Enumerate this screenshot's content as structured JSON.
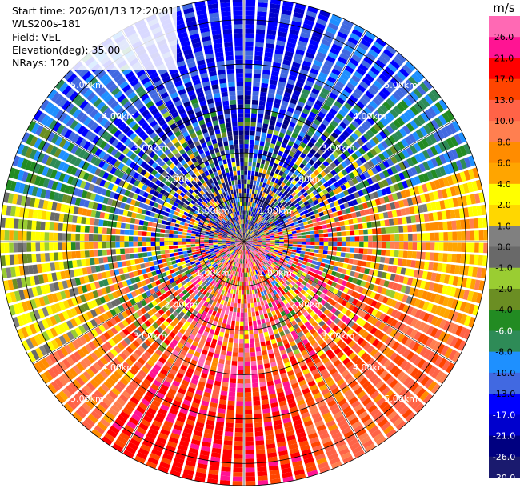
{
  "info": {
    "start_time": "Start time: 2026/01/13 12:20:01",
    "instrument": "WLS200s-181",
    "field": "Field: VEL",
    "elevation": "Elevation(deg): 35.00",
    "nrays": "NRays: 120"
  },
  "chart_data": {
    "type": "heatmap",
    "projection": "polar-ppi",
    "field": "VEL",
    "units": "m/s",
    "elevation_deg": 35.0,
    "n_rays": 120,
    "max_range_km": 5.5,
    "range_rings_km": [
      1,
      2,
      3,
      4,
      5
    ],
    "range_labels": [
      "1.00km",
      "2.00km",
      "3.00km",
      "4.00km",
      "5.00km"
    ],
    "colorbar": {
      "label": "m/s",
      "vmin": -30,
      "vmax": 30,
      "bounds": [
        -30,
        -26,
        -21,
        -17,
        -13,
        -10,
        -8,
        -6,
        -4,
        -2,
        -1,
        0,
        1,
        2,
        4,
        6,
        8,
        10,
        13,
        17,
        21,
        26,
        30
      ],
      "tick_labels": [
        "26.0",
        "21.0",
        "17.0",
        "13.0",
        "10.0",
        "8.0",
        "6.0",
        "4.0",
        "2.0",
        "1.0",
        "0.0",
        "-1.0",
        "-2.0",
        "-4.0",
        "-6.0",
        "-8.0",
        "-10.0",
        "-13.0",
        "-17.0",
        "-21.0",
        "-26.0",
        "-30.0"
      ],
      "colors": [
        "#1a1a6e",
        "#000080",
        "#0000cd",
        "#0000ff",
        "#4169e1",
        "#1e90ff",
        "#2e8b57",
        "#228b22",
        "#6b8e23",
        "#9acd32",
        "#696969",
        "#808080",
        "#ffd700",
        "#ffff00",
        "#ffa500",
        "#ff8c00",
        "#ff7f50",
        "#ff6347",
        "#ff4500",
        "#ff0000",
        "#ff1493",
        "#ff69b4"
      ]
    },
    "sector_bias_ms": [
      {
        "az_from": 330,
        "az_to": 20,
        "value": -15
      },
      {
        "az_from": 20,
        "az_to": 45,
        "value": -12
      },
      {
        "az_from": 45,
        "az_to": 70,
        "value": -8
      },
      {
        "az_from": 70,
        "az_to": 110,
        "value": 5
      },
      {
        "az_from": 110,
        "az_to": 160,
        "value": 11
      },
      {
        "az_from": 160,
        "az_to": 215,
        "value": 18
      },
      {
        "az_from": 215,
        "az_to": 240,
        "value": 9
      },
      {
        "az_from": 240,
        "az_to": 255,
        "value": 2
      },
      {
        "az_from": 255,
        "az_to": 280,
        "value": 1
      },
      {
        "az_from": 280,
        "az_to": 300,
        "value": -7
      },
      {
        "az_from": 300,
        "az_to": 330,
        "value": -11
      }
    ]
  }
}
